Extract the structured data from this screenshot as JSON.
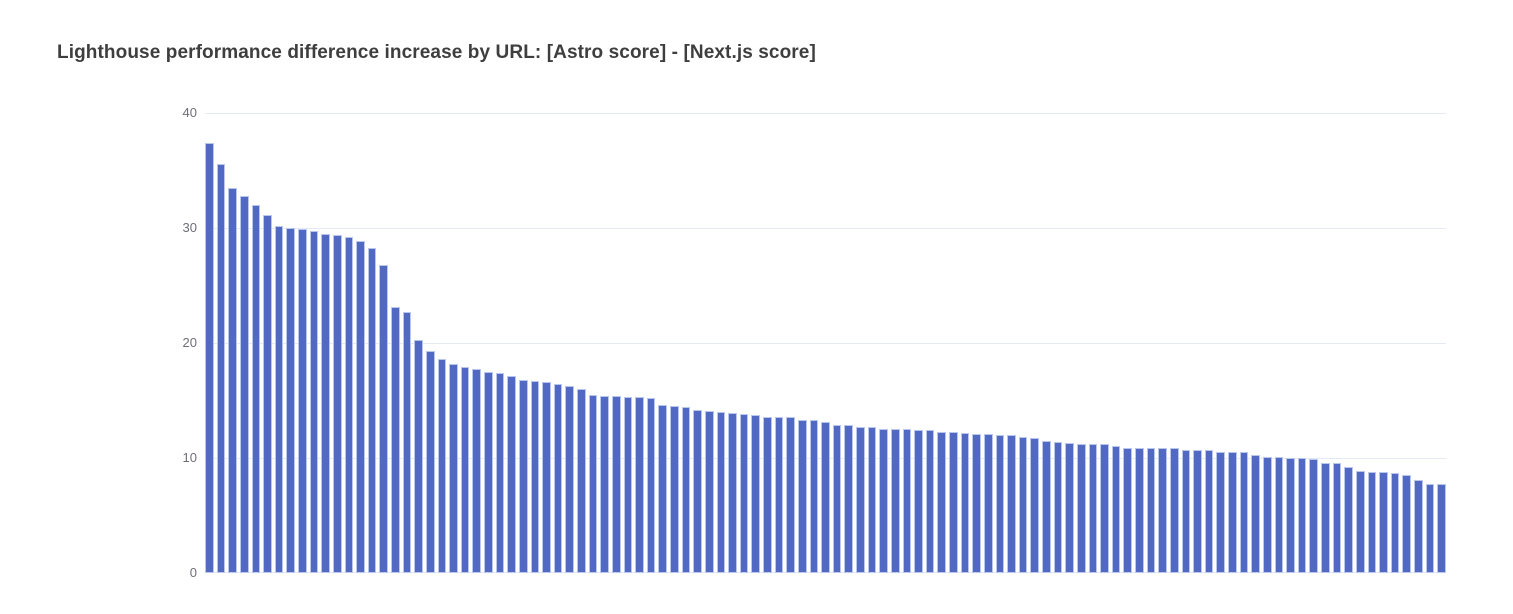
{
  "title": "Lighthouse performance difference increase by URL: [Astro score] - [Next.js score]",
  "colors": {
    "bar_fill": "#5169c3",
    "bar_border": "#bac7ec",
    "gridline": "#e4e9f3",
    "axis_label": "#6e6e78",
    "title_text": "#3e3e3e",
    "background": "#ffffff"
  },
  "chart_data": {
    "type": "bar",
    "title": "Lighthouse performance difference increase by URL: [Astro score] - [Next.js score]",
    "xlabel": "",
    "ylabel": "",
    "ylim": [
      0,
      40
    ],
    "yticks": [
      0,
      10,
      20,
      30,
      40
    ],
    "ytick_labels": [
      "0",
      "10",
      "20",
      "30",
      "40"
    ],
    "x_category_labels_visible": false,
    "grid": true,
    "legend": false,
    "bar_count": 107,
    "values": [
      37.4,
      35.6,
      33.5,
      32.8,
      32.0,
      31.1,
      30.2,
      30.0,
      29.9,
      29.7,
      29.5,
      29.4,
      29.2,
      28.9,
      28.3,
      26.8,
      23.1,
      22.7,
      20.3,
      19.3,
      18.6,
      18.2,
      17.9,
      17.7,
      17.5,
      17.4,
      17.1,
      16.8,
      16.7,
      16.6,
      16.4,
      16.3,
      16.0,
      15.5,
      15.4,
      15.4,
      15.3,
      15.3,
      15.2,
      14.6,
      14.5,
      14.4,
      14.2,
      14.1,
      14.0,
      13.9,
      13.8,
      13.7,
      13.6,
      13.6,
      13.6,
      13.3,
      13.3,
      13.1,
      12.9,
      12.9,
      12.7,
      12.7,
      12.5,
      12.5,
      12.5,
      12.4,
      12.4,
      12.3,
      12.3,
      12.2,
      12.1,
      12.1,
      12.0,
      12.0,
      11.8,
      11.7,
      11.5,
      11.4,
      11.3,
      11.2,
      11.2,
      11.2,
      11.0,
      10.9,
      10.9,
      10.9,
      10.9,
      10.9,
      10.7,
      10.7,
      10.7,
      10.5,
      10.5,
      10.5,
      10.3,
      10.1,
      10.1,
      10.0,
      10.0,
      9.9,
      9.6,
      9.6,
      9.2,
      8.9,
      8.8,
      8.8,
      8.7,
      8.5,
      8.1,
      7.7,
      7.7
    ]
  }
}
